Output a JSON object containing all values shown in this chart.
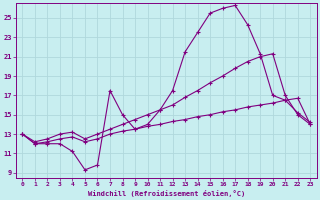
{
  "xlabel": "Windchill (Refroidissement éolien,°C)",
  "bg_color": "#c8eef0",
  "line_color": "#800080",
  "grid_color": "#b0d8dc",
  "xlim": [
    -0.5,
    23.5
  ],
  "ylim": [
    8.5,
    26.5
  ],
  "yticks": [
    9,
    11,
    13,
    15,
    17,
    19,
    21,
    23,
    25
  ],
  "xticks": [
    0,
    1,
    2,
    3,
    4,
    5,
    6,
    7,
    8,
    9,
    10,
    11,
    12,
    13,
    14,
    15,
    16,
    17,
    18,
    19,
    20,
    21,
    22,
    23
  ],
  "line1_x": [
    0,
    1,
    2,
    3,
    4,
    5,
    6,
    7,
    8,
    9,
    10,
    11,
    12,
    13,
    14,
    15,
    16,
    17,
    18,
    19,
    20,
    21,
    22,
    23
  ],
  "line1_y": [
    13.0,
    12.0,
    12.0,
    12.0,
    11.2,
    9.3,
    9.8,
    17.5,
    15.0,
    13.5,
    14.0,
    15.5,
    17.5,
    21.5,
    23.5,
    25.5,
    26.0,
    26.3,
    24.3,
    21.3,
    17.0,
    16.5,
    15.2,
    14.2
  ],
  "line2_x": [
    0,
    1,
    2,
    3,
    4,
    5,
    6,
    7,
    8,
    9,
    10,
    11,
    12,
    13,
    14,
    15,
    16,
    17,
    18,
    19,
    20,
    21,
    22,
    23
  ],
  "line2_y": [
    13.0,
    12.2,
    12.5,
    13.0,
    13.2,
    12.5,
    13.0,
    13.5,
    14.0,
    14.5,
    15.0,
    15.5,
    16.0,
    16.8,
    17.5,
    18.3,
    19.0,
    19.8,
    20.5,
    21.0,
    21.3,
    17.0,
    15.0,
    14.0
  ],
  "line3_x": [
    0,
    1,
    2,
    3,
    4,
    5,
    6,
    7,
    8,
    9,
    10,
    11,
    12,
    13,
    14,
    15,
    16,
    17,
    18,
    19,
    20,
    21,
    22,
    23
  ],
  "line3_y": [
    13.0,
    12.0,
    12.2,
    12.5,
    12.7,
    12.2,
    12.5,
    13.0,
    13.3,
    13.5,
    13.8,
    14.0,
    14.3,
    14.5,
    14.8,
    15.0,
    15.3,
    15.5,
    15.8,
    16.0,
    16.2,
    16.5,
    16.7,
    14.0
  ]
}
